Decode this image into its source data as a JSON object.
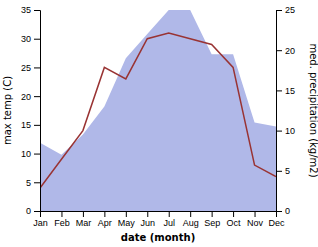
{
  "chart_data": {
    "type": "line",
    "categories": [
      "Jan",
      "Feb",
      "Mar",
      "Apr",
      "May",
      "Jun",
      "Jul",
      "Aug",
      "Sep",
      "Oct",
      "Nov",
      "Dec"
    ],
    "xlabel": "date (month)",
    "ylabel": "max temp (C)",
    "y2label": "med. precipitation (kg/m2)",
    "series": [
      {
        "type": "area",
        "axis": "y2",
        "color": "#b0b8e8",
        "values": [
          8.5,
          7.0,
          9.5,
          13.0,
          19.0,
          22.0,
          25.0,
          25.0,
          19.5,
          19.5,
          11.0,
          10.5
        ]
      },
      {
        "type": "line",
        "color": "#993333",
        "values": [
          4.0,
          9.0,
          14.0,
          25.0,
          23.0,
          30.0,
          31.0,
          30.0,
          29.0,
          25.0,
          8.0,
          6.0
        ]
      }
    ],
    "ylim": [
      0,
      35
    ],
    "yticks": [
      0,
      5,
      10,
      15,
      20,
      25,
      30,
      35
    ],
    "y2lim": [
      0,
      25
    ],
    "y2ticks": [
      0,
      5,
      10,
      15,
      20,
      25
    ]
  }
}
